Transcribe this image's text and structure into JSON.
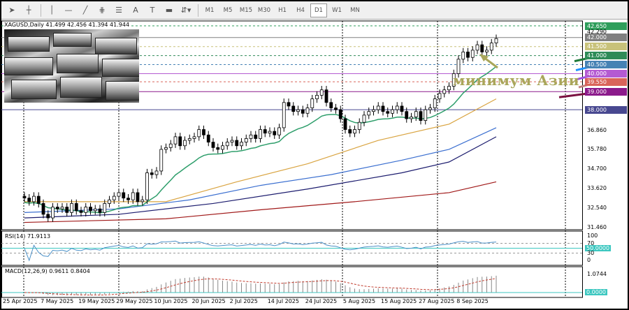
{
  "toolbar": {
    "tools": [
      {
        "icon": "cursor-icon",
        "g": "➤"
      },
      {
        "icon": "crosshair-icon",
        "g": "┼"
      },
      {
        "icon": "vertical-line-icon",
        "g": "│"
      },
      {
        "icon": "horizontal-line-icon",
        "g": "—"
      },
      {
        "icon": "trendline-icon",
        "g": "╱"
      },
      {
        "icon": "fibonacci-icon",
        "g": "⋕"
      },
      {
        "icon": "fibo-levels-icon",
        "g": "☰"
      },
      {
        "icon": "text-icon",
        "g": "A"
      },
      {
        "icon": "text-label-icon",
        "g": "T"
      },
      {
        "icon": "rectangle-icon",
        "g": "▬"
      },
      {
        "icon": "shapes-menu-icon",
        "g": "⇵▾"
      }
    ],
    "timeframes": [
      "M1",
      "M5",
      "M15",
      "M30",
      "H1",
      "H4",
      "D1",
      "W1",
      "MN"
    ],
    "active_timeframe": "D1"
  },
  "chart": {
    "symbol_line": "XAGUSD,Daily  41.499 42.456 41.394 41.944",
    "annotation": "минимум Азии",
    "price_ticks": [
      "42.290",
      "36.860",
      "35.780",
      "34.700",
      "33.620",
      "32.540",
      "31.460"
    ],
    "levels": [
      {
        "label": "42.650",
        "value": 42.65,
        "color": "#2e9e5b",
        "dash": true
      },
      {
        "label": "42.000",
        "value": 42.0,
        "color": "#808080",
        "dash": false
      },
      {
        "label": "41.500",
        "value": 41.5,
        "color": "#c8c27a",
        "dash": true
      },
      {
        "label": "41.000",
        "value": 41.0,
        "color": "#2e8b57",
        "dash": true
      },
      {
        "label": "40.500",
        "value": 40.5,
        "color": "#4682b4",
        "dash": true
      },
      {
        "label": "40.000",
        "value": 40.0,
        "color": "#b45ad2",
        "dash": false
      },
      {
        "label": "39.550",
        "value": 39.55,
        "color": "#d9645a",
        "dash": true
      },
      {
        "label": "39.000",
        "value": 39.0,
        "color": "#8b1a8b",
        "dash": false
      },
      {
        "label": "38.000",
        "value": 38.0,
        "color": "#484890",
        "dash": false
      }
    ],
    "arrows": [
      {
        "color": "#1e7a3a",
        "to": 41.0
      },
      {
        "color": "#1e90ff",
        "to": 40.5
      },
      {
        "color": "#9b4de0",
        "to": 40.0
      },
      {
        "color": "#c08080",
        "to": 39.55
      },
      {
        "color": "#7a1040",
        "to": 39.0
      }
    ],
    "closes": [
      33.1,
      32.9,
      33.2,
      32.8,
      32.2,
      32.0,
      32.6,
      32.5,
      32.6,
      32.3,
      32.8,
      32.4,
      32.3,
      32.6,
      32.4,
      32.5,
      32.3,
      32.8,
      33.0,
      33.2,
      33.4,
      33.1,
      33.0,
      33.4,
      32.9,
      33.0,
      34.5,
      34.4,
      34.6,
      35.8,
      35.9,
      36.1,
      36.5,
      36.0,
      36.3,
      36.4,
      36.5,
      36.9,
      36.6,
      36.2,
      35.9,
      35.8,
      36.0,
      36.2,
      36.3,
      36.0,
      36.2,
      36.4,
      36.6,
      36.4,
      36.9,
      36.7,
      36.8,
      36.6,
      37.0,
      38.4,
      38.2,
      37.9,
      38.0,
      37.8,
      38.1,
      38.6,
      38.8,
      39.1,
      38.4,
      38.1,
      38.0,
      37.5,
      36.9,
      36.7,
      36.9,
      37.3,
      37.7,
      37.9,
      38.0,
      38.2,
      37.9,
      37.8,
      38.0,
      38.2,
      37.9,
      37.5,
      37.6,
      37.9,
      37.4,
      38.0,
      38.1,
      38.6,
      38.9,
      39.1,
      39.3,
      40.0,
      40.8,
      41.2,
      40.9,
      41.3,
      41.6,
      41.2,
      41.3,
      41.7,
      41.944
    ],
    "moving_averages": [
      {
        "color": "#d9a441",
        "points": [
          [
            0,
            32.9
          ],
          [
            30,
            32.9
          ],
          [
            45,
            34.0
          ],
          [
            60,
            35.0
          ],
          [
            75,
            36.3
          ],
          [
            90,
            37.2
          ],
          [
            100,
            38.6
          ]
        ]
      },
      {
        "color": "#3b6fd0",
        "points": [
          [
            0,
            32.3
          ],
          [
            20,
            32.5
          ],
          [
            35,
            33.0
          ],
          [
            50,
            33.8
          ],
          [
            65,
            34.4
          ],
          [
            80,
            35.2
          ],
          [
            90,
            35.8
          ],
          [
            100,
            37.0
          ]
        ]
      },
      {
        "color": "#1c1c6e",
        "points": [
          [
            0,
            32.0
          ],
          [
            20,
            32.2
          ],
          [
            40,
            32.8
          ],
          [
            60,
            33.6
          ],
          [
            80,
            34.5
          ],
          [
            90,
            35.1
          ],
          [
            100,
            36.5
          ]
        ]
      },
      {
        "color": "#a01818",
        "points": [
          [
            0,
            31.75
          ],
          [
            30,
            31.95
          ],
          [
            50,
            32.45
          ],
          [
            70,
            32.9
          ],
          [
            90,
            33.4
          ],
          [
            100,
            34.0
          ]
        ]
      }
    ],
    "fast_ma_color": "#2e9e6b"
  },
  "rsi": {
    "label": "RSI(14) 71.9113",
    "levels": [
      "100",
      "70",
      "50.0000",
      "30",
      "0"
    ]
  },
  "macd": {
    "label": "MACD(12,26,9) 0.9611 0.8404",
    "top": "1.0744",
    "zero": "0.0000"
  },
  "dates": [
    "25 Apr 2025",
    "7 May 2025",
    "19 May 2025",
    "29 May 2025",
    "10 Jun 2025",
    "20 Jun 2025",
    "2 Jul 2025",
    "14 Jul 2025",
    "24 Jul 2025",
    "5 Aug 2025",
    "15 Aug 2025",
    "27 Aug 2025",
    "8 Sep 2025"
  ]
}
